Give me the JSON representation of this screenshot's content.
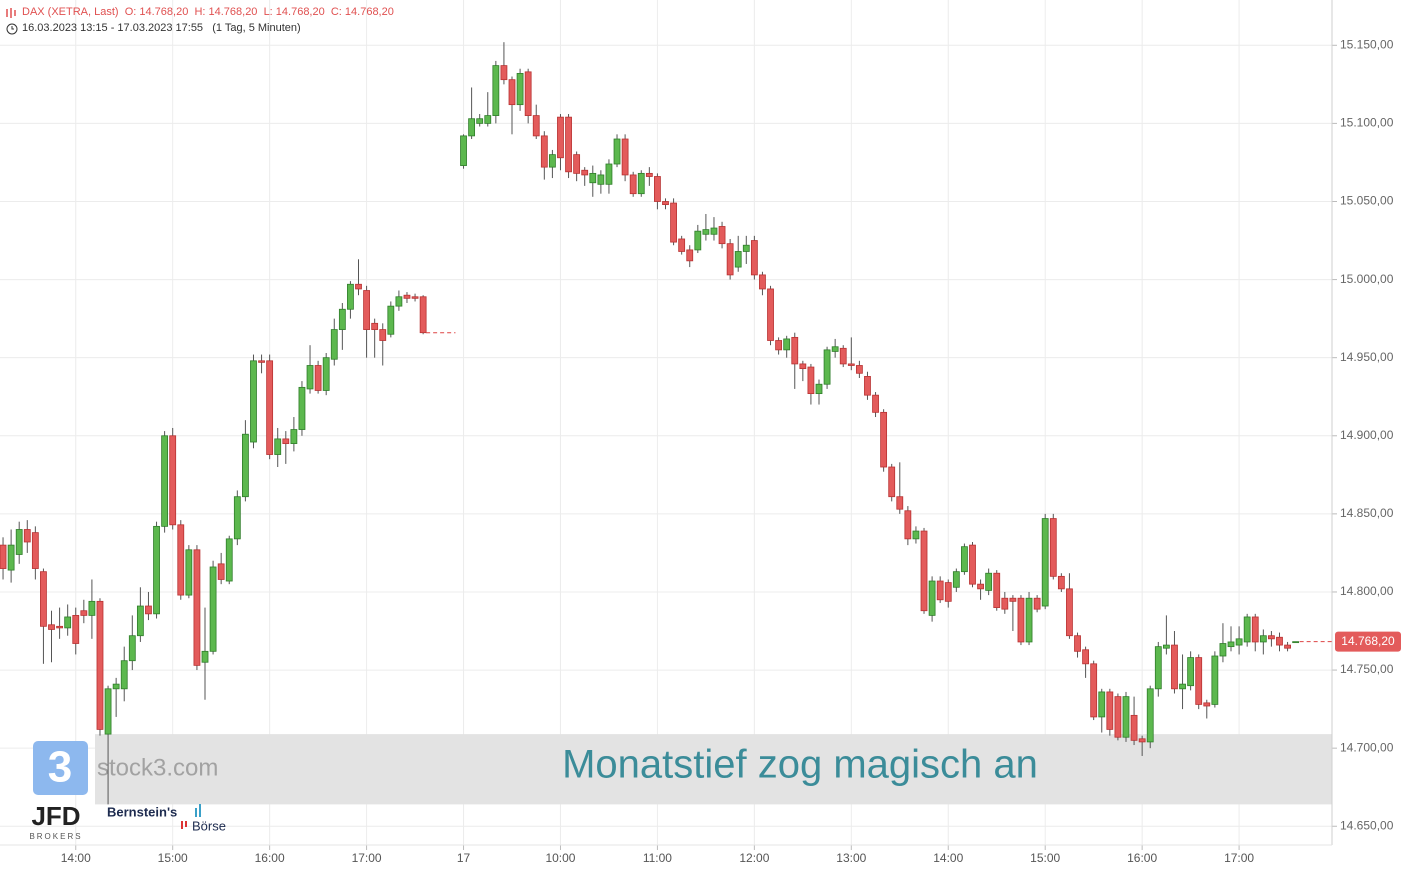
{
  "chart_data": {
    "type": "candlestick",
    "title": "DAX (XETRA, Last)",
    "stats": [
      "O: 14.768,20",
      "H: 14.768,20",
      "L: 14.768,20",
      "C: 14.768,20"
    ],
    "range": "16.03.2023 13:15 - 17.03.2023 17:55",
    "interval": "(1 Tag, 5 Minuten)",
    "annotation": {
      "text": "Monatstief zog magisch an",
      "band": [
        14664,
        14709
      ]
    },
    "last_price": {
      "value": 14768.2,
      "label": "14.768,20"
    },
    "logos": {
      "icon": "3",
      "site": "stock3.com",
      "broker": "JFD",
      "broker_sub": "BROKERS",
      "partner": "Bernstein's",
      "partner_sub": "Börse"
    },
    "up_color": "#5cb84e",
    "down_color": "#e35b5b",
    "grid": true,
    "ylim": [
      14638,
      15179
    ],
    "yticks": [
      {
        "value": 14650,
        "label": "14.650,00"
      },
      {
        "value": 14700,
        "label": "14.700,00"
      },
      {
        "value": 14750,
        "label": "14.750,00"
      },
      {
        "value": 14800,
        "label": "14.800,00"
      },
      {
        "value": 14850,
        "label": "14.850,00"
      },
      {
        "value": 14900,
        "label": "14.900,00"
      },
      {
        "value": 14950,
        "label": "14.950,00"
      },
      {
        "value": 15000,
        "label": "15.000,00"
      },
      {
        "value": 15050,
        "label": "15.050,00"
      },
      {
        "value": 15100,
        "label": "15.100,00"
      },
      {
        "value": 15150,
        "label": "15.150,00"
      }
    ],
    "categories": [
      null,
      null,
      null,
      null,
      null,
      null,
      null,
      null,
      null,
      "14:00",
      null,
      null,
      null,
      null,
      null,
      null,
      null,
      null,
      null,
      null,
      null,
      "15:00",
      null,
      null,
      null,
      null,
      null,
      null,
      null,
      null,
      null,
      null,
      null,
      "16:00",
      null,
      null,
      null,
      null,
      null,
      null,
      null,
      null,
      null,
      null,
      null,
      "17:00",
      null,
      null,
      null,
      null,
      null,
      null,
      null,
      null,
      null,
      null,
      null,
      "17",
      null,
      null,
      null,
      null,
      null,
      null,
      null,
      null,
      null,
      null,
      null,
      "10:00",
      null,
      null,
      null,
      null,
      null,
      null,
      null,
      null,
      null,
      null,
      null,
      "11:00",
      null,
      null,
      null,
      null,
      null,
      null,
      null,
      null,
      null,
      null,
      null,
      "12:00",
      null,
      null,
      null,
      null,
      null,
      null,
      null,
      null,
      null,
      null,
      null,
      "13:00",
      null,
      null,
      null,
      null,
      null,
      null,
      null,
      null,
      null,
      null,
      null,
      "14:00",
      null,
      null,
      null,
      null,
      null,
      null,
      null,
      null,
      null,
      null,
      null,
      "15:00",
      null,
      null,
      null,
      null,
      null,
      null,
      null,
      null,
      null,
      null,
      null,
      "16:00",
      null,
      null,
      null,
      null,
      null,
      null,
      null,
      null,
      null,
      null,
      null,
      "17:00",
      null,
      null,
      null,
      null,
      null,
      null,
      null,
      null,
      null,
      null,
      null
    ],
    "open": [
      14830,
      14814,
      14824,
      14840,
      14838,
      14813,
      14779,
      14778,
      14777,
      14785,
      14788,
      14785,
      14794,
      14709,
      14738,
      14738,
      14756,
      14772,
      14791,
      14786,
      14842,
      14900,
      14843,
      14798,
      14827,
      14755,
      14762,
      14818,
      14807,
      14834,
      14861,
      14896,
      14948,
      14948,
      14888,
      14898,
      14895,
      14904,
      14930,
      14945,
      14929,
      14949,
      14968,
      14981,
      14997,
      14993,
      14972,
      14968,
      14965,
      14983,
      14990,
      14989,
      14989,
      null,
      null,
      null,
      null,
      15073,
      15092,
      15100,
      15100,
      15105,
      15137,
      15128,
      15112,
      15133,
      15105,
      15092,
      15072,
      15104,
      15104,
      15080,
      15070,
      15062,
      15061,
      15061,
      15074,
      15090,
      15067,
      15055,
      15068,
      15066,
      15050,
      15049,
      15026,
      15019,
      15019,
      15029,
      15029,
      15034,
      15023,
      15008,
      15018,
      15025,
      15003,
      14994,
      14961,
      14955,
      14963,
      14946,
      14944,
      14927,
      14933,
      14954,
      14956,
      14946,
      14945,
      14938,
      14926,
      14915,
      14880,
      14861,
      14852,
      14834,
      14839,
      14785,
      14807,
      14806,
      14803,
      14813,
      14830,
      14805,
      14801,
      14812,
      14796,
      14796,
      14796,
      14768,
      14796,
      14791,
      14847,
      14810,
      14802,
      14772,
      14763,
      14754,
      14720,
      14736,
      14733,
      14707,
      14721,
      14706,
      14704,
      14738,
      14764,
      14766,
      14738,
      14740,
      14758,
      14729,
      14728,
      14759,
      14765,
      14766,
      14768,
      14784,
      14768,
      14772,
      14771,
      14766,
      14768.2,
      null,
      null,
      null,
      null
    ],
    "high": [
      14835,
      14840,
      14845,
      14846,
      14842,
      14815,
      14788,
      14790,
      14792,
      14790,
      14795,
      14808,
      14796,
      14740,
      14745,
      14765,
      14785,
      14803,
      14800,
      14845,
      14903,
      14905,
      14846,
      14830,
      14830,
      14790,
      14820,
      14825,
      14836,
      14865,
      14910,
      14952,
      14952,
      14952,
      14905,
      14903,
      14912,
      14935,
      14958,
      14948,
      14953,
      14975,
      14985,
      14999,
      15013,
      14996,
      14975,
      14972,
      14986,
      14993,
      14992,
      14991,
      14990,
      null,
      null,
      null,
      null,
      15093,
      15123,
      15106,
      15120,
      15140,
      15152,
      15130,
      15135,
      15135,
      15112,
      15095,
      15083,
      15106,
      15106,
      15082,
      15072,
      15073,
      15070,
      15077,
      15093,
      15093,
      15069,
      15070,
      15072,
      15068,
      15052,
      15052,
      15028,
      15022,
      15035,
      15042,
      15040,
      15037,
      15026,
      15028,
      15028,
      15028,
      15005,
      14996,
      14963,
      14964,
      14966,
      14948,
      14946,
      14936,
      14957,
      14962,
      14958,
      14963,
      14948,
      14941,
      14928,
      14917,
      14882,
      14883,
      14855,
      14842,
      14841,
      14810,
      14810,
      14808,
      14815,
      14831,
      14832,
      14808,
      14815,
      14814,
      14800,
      14798,
      14798,
      14800,
      14798,
      14850,
      14850,
      14812,
      14812,
      14774,
      14765,
      14756,
      14738,
      14738,
      14735,
      14736,
      14733,
      14708,
      14740,
      14768,
      14785,
      14775,
      14760,
      14762,
      14760,
      14731,
      14762,
      14780,
      14778,
      14778,
      14786,
      14786,
      14776,
      14775,
      14774,
      14768,
      14768.2,
      null,
      null,
      null,
      null
    ],
    "low": [
      14808,
      14806,
      14818,
      14825,
      14808,
      14754,
      14755,
      14770,
      14772,
      14760,
      14780,
      14770,
      14708,
      14664,
      14720,
      14730,
      14750,
      14768,
      14782,
      14783,
      14838,
      14840,
      14795,
      14796,
      14750,
      14731,
      14760,
      14805,
      14805,
      14830,
      14858,
      14892,
      14940,
      14885,
      14880,
      14882,
      14890,
      14900,
      14927,
      14927,
      14926,
      14945,
      14955,
      14975,
      14990,
      14950,
      14950,
      14945,
      14963,
      14980,
      14985,
      14986,
      14965,
      null,
      null,
      null,
      null,
      15071,
      15090,
      15098,
      15098,
      15100,
      15125,
      15093,
      15108,
      15100,
      15090,
      15064,
      15065,
      15070,
      15065,
      15063,
      15060,
      15053,
      15055,
      15055,
      15072,
      15063,
      15053,
      15053,
      15060,
      15045,
      15045,
      15022,
      15016,
      15008,
      15017,
      15025,
      15025,
      15020,
      15000,
      15005,
      15010,
      15000,
      14990,
      14958,
      14952,
      14950,
      14930,
      14935,
      14920,
      14920,
      14930,
      14950,
      14944,
      14942,
      14937,
      14923,
      14912,
      14877,
      14858,
      14850,
      14830,
      14831,
      14786,
      14781,
      14793,
      14790,
      14800,
      14811,
      14803,
      14795,
      14798,
      14788,
      14786,
      14775,
      14766,
      14766,
      14787,
      14789,
      14808,
      14800,
      14770,
      14758,
      14745,
      14718,
      14710,
      14708,
      14705,
      14704,
      14702,
      14695,
      14700,
      14733,
      14760,
      14735,
      14725,
      14737,
      14725,
      14719,
      14726,
      14755,
      14762,
      14760,
      14765,
      14762,
      14760,
      14765,
      14762,
      14762,
      14768.2,
      null,
      null,
      null,
      null
    ],
    "close": [
      14815,
      14830,
      14840,
      14832,
      14815,
      14778,
      14776,
      14777,
      14784,
      14767,
      14785,
      14794,
      14712,
      14738,
      14741,
      14756,
      14772,
      14791,
      14786,
      14842,
      14900,
      14843,
      14798,
      14827,
      14753,
      14762,
      14816,
      14808,
      14834,
      14861,
      14901,
      14948,
      14947,
      14888,
      14898,
      14895,
      14904,
      14931,
      14945,
      14929,
      14950,
      14968,
      14981,
      14997,
      14994,
      14968,
      14968,
      14961,
      14983,
      14989,
      14988,
      14988,
      14966,
      null,
      null,
      null,
      null,
      15092,
      15103,
      15103,
      15105,
      15137,
      15128,
      15112,
      15132,
      15105,
      15092,
      15072,
      15080,
      15078,
      15069,
      15068,
      15067,
      15068,
      15067,
      15074,
      15090,
      15067,
      15055,
      15068,
      15066,
      15050,
      15048,
      15024,
      15018,
      15012,
      15031,
      15032,
      15033,
      15023,
      15003,
      15018,
      15022,
      15003,
      14994,
      14961,
      14955,
      14962,
      14946,
      14943,
      14927,
      14933,
      14955,
      14957,
      14946,
      14945,
      14940,
      14926,
      14915,
      14880,
      14861,
      14853,
      14834,
      14839,
      14788,
      14807,
      14795,
      14794,
      14813,
      14829,
      14805,
      14802,
      14812,
      14790,
      14789,
      14794,
      14768,
      14796,
      14789,
      14847,
      14810,
      14802,
      14772,
      14762,
      14754,
      14720,
      14736,
      14712,
      14707,
      14733,
      14705,
      14704,
      14738,
      14765,
      14766,
      14738,
      14741,
      14758,
      14728,
      14727,
      14759,
      14767,
      14768,
      14770,
      14784,
      14768,
      14772,
      14770,
      14766,
      14764,
      14768.2,
      null,
      null,
      null,
      null
    ]
  }
}
